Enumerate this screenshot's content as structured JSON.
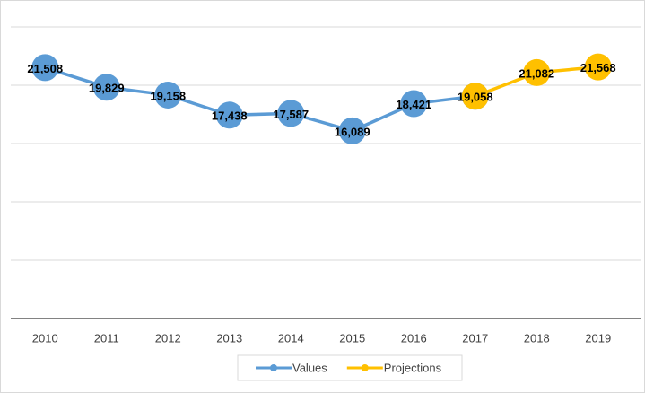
{
  "chart_data": {
    "type": "line",
    "categories": [
      "2010",
      "2011",
      "2012",
      "2013",
      "2014",
      "2015",
      "2016",
      "2017",
      "2018",
      "2019"
    ],
    "series": [
      {
        "name": "Values",
        "color": "#5b9bd5",
        "values": [
          21508,
          19829,
          19158,
          17438,
          17587,
          16089,
          18421,
          19058,
          null,
          null
        ],
        "value_labels": [
          "21,508",
          "19,829",
          "19,158",
          "17,438",
          "17,587",
          "16,089",
          "18,421",
          null,
          null,
          null
        ]
      },
      {
        "name": "Projections",
        "color": "#ffc000",
        "values": [
          null,
          null,
          null,
          null,
          null,
          null,
          null,
          19058,
          21082,
          21568
        ],
        "value_labels": [
          null,
          null,
          null,
          null,
          null,
          null,
          null,
          "19,058",
          "21,082",
          "21,568"
        ]
      }
    ],
    "ylim": [
      0,
      25000
    ],
    "yticks": [
      0,
      5000,
      10000,
      15000,
      20000,
      25000
    ],
    "grid": true,
    "legend": "bottom"
  }
}
